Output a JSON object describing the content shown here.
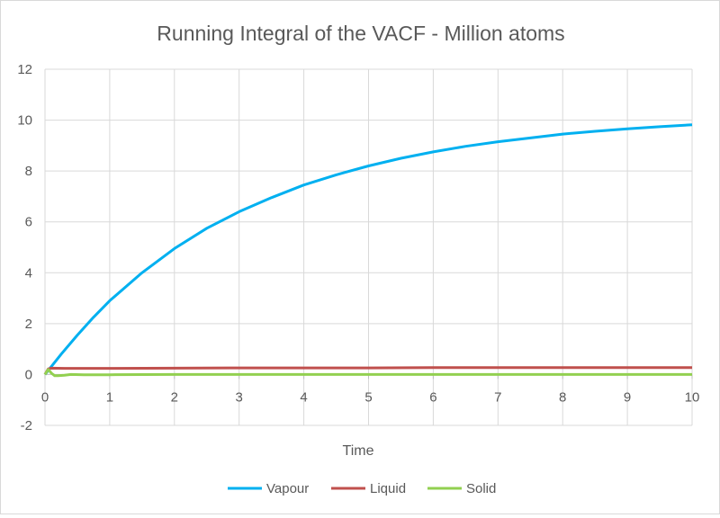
{
  "chart_data": {
    "type": "line",
    "title": "Running Integral of the VACF - Million atoms",
    "xlabel": "Time",
    "ylabel": "",
    "xlim": [
      0,
      10
    ],
    "ylim": [
      -2,
      12
    ],
    "xticks": [
      "0",
      "1",
      "2",
      "3",
      "4",
      "5",
      "6",
      "7",
      "8",
      "9",
      "10"
    ],
    "yticks": [
      "-2",
      "0",
      "2",
      "4",
      "6",
      "8",
      "10",
      "12"
    ],
    "grid": true,
    "legend_position": "bottom",
    "series": [
      {
        "name": "Vapour",
        "color": "#00b0f0",
        "x": [
          0,
          0.25,
          0.5,
          0.75,
          1,
          1.5,
          2,
          2.5,
          3,
          3.5,
          4,
          4.5,
          5,
          5.5,
          6,
          6.5,
          7,
          7.5,
          8,
          8.5,
          9,
          9.5,
          10
        ],
        "y": [
          0,
          0.8,
          1.55,
          2.25,
          2.9,
          4.0,
          4.95,
          5.75,
          6.4,
          6.95,
          7.45,
          7.85,
          8.2,
          8.5,
          8.75,
          8.97,
          9.15,
          9.3,
          9.45,
          9.56,
          9.66,
          9.74,
          9.82
        ]
      },
      {
        "name": "Liquid",
        "color": "#c0504d",
        "x": [
          0,
          0.05,
          0.1,
          0.3,
          1,
          2,
          3,
          4,
          5,
          6,
          7,
          8,
          9,
          10
        ],
        "y": [
          0,
          0.22,
          0.25,
          0.24,
          0.24,
          0.25,
          0.26,
          0.26,
          0.26,
          0.27,
          0.27,
          0.27,
          0.27,
          0.27
        ]
      },
      {
        "name": "Solid",
        "color": "#92d050",
        "x": [
          0,
          0.05,
          0.1,
          0.15,
          0.2,
          0.3,
          0.4,
          0.6,
          1,
          2,
          3,
          4,
          5,
          6,
          7,
          8,
          9,
          10
        ],
        "y": [
          0,
          0.2,
          0.05,
          -0.05,
          -0.05,
          -0.03,
          0,
          -0.01,
          -0.01,
          0,
          0,
          0,
          0,
          0,
          0,
          0,
          0,
          0
        ]
      }
    ]
  }
}
